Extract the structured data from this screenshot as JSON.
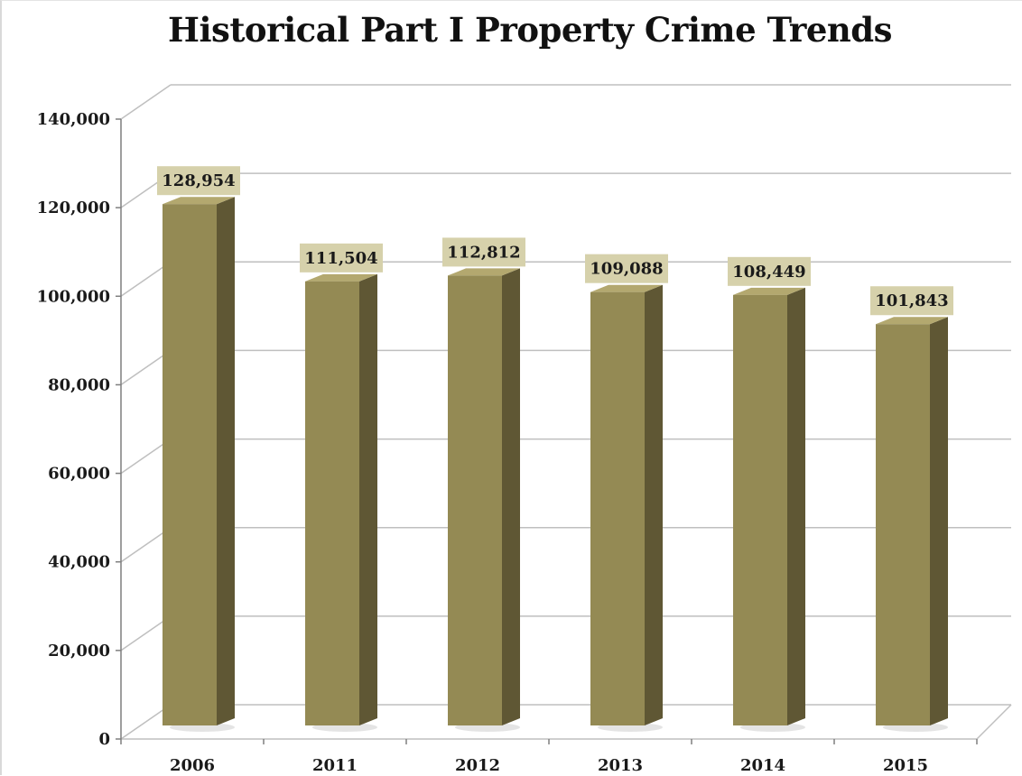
{
  "chart_data": {
    "type": "bar",
    "title": "Historical Part I Property Crime Trends",
    "xlabel": "",
    "ylabel": "",
    "categories": [
      "2006",
      "2011",
      "2012",
      "2013",
      "2014",
      "2015"
    ],
    "values": [
      128954,
      111504,
      112812,
      109088,
      108449,
      101843
    ],
    "data_labels": [
      "128,954",
      "111,504",
      "112,812",
      "109,088",
      "108,449",
      "101,843"
    ],
    "ylim": [
      0,
      140000
    ],
    "y_ticks": [
      0,
      20000,
      40000,
      60000,
      80000,
      100000,
      120000,
      140000
    ],
    "y_tick_labels": [
      "0",
      "20,000",
      "40,000",
      "60,000",
      "80,000",
      "100,000",
      "120,000",
      "140,000"
    ],
    "grid": true,
    "legend": "none",
    "style": "3d-column",
    "colors": {
      "bar_front": "#948a54",
      "bar_side": "#5f5734",
      "bar_top": "#b3a86f",
      "data_label_bg": "#d6d1ab",
      "gridline": "#bfbfbf",
      "text": "#1a1a1a"
    }
  }
}
